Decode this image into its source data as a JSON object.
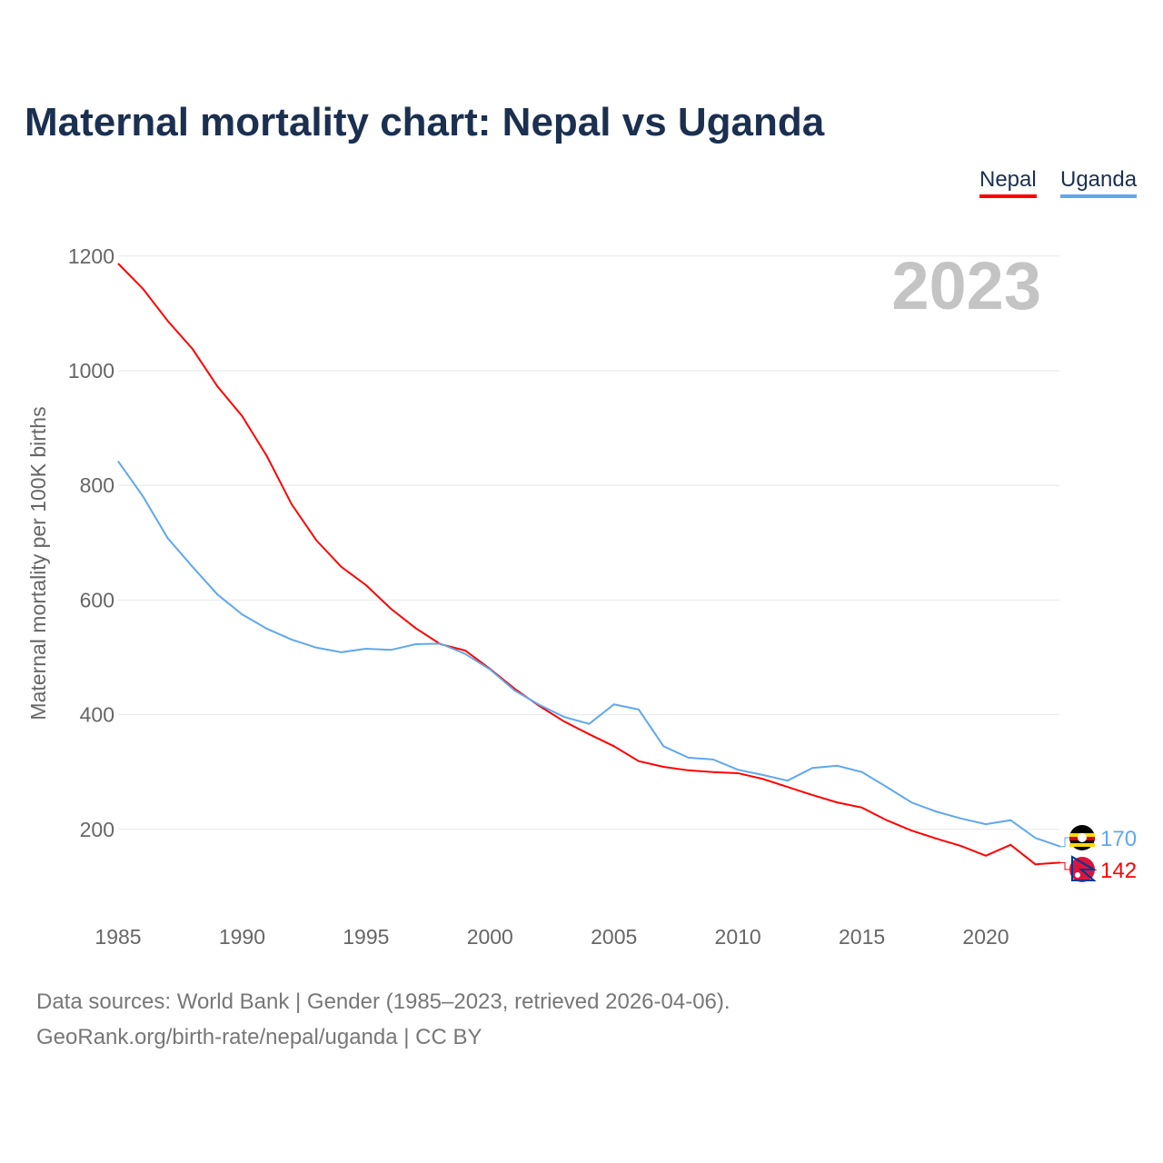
{
  "chart_data": {
    "type": "line",
    "title": "Maternal mortality chart: Nepal vs Uganda",
    "ylabel": "Maternal mortality per 100K births",
    "xlabel": "",
    "year_label": "2023",
    "ylim": [
      0,
      1200
    ],
    "xlim": [
      1985,
      2023
    ],
    "yticks": [
      200,
      400,
      600,
      800,
      1000,
      1200
    ],
    "xticks": [
      1985,
      1990,
      1995,
      2000,
      2005,
      2010,
      2015,
      2020
    ],
    "grid": true,
    "legend_position": "top-right",
    "x": [
      1985,
      1986,
      1987,
      1988,
      1989,
      1990,
      1991,
      1992,
      1993,
      1994,
      1995,
      1996,
      1997,
      1998,
      1999,
      2000,
      2001,
      2002,
      2003,
      2004,
      2005,
      2006,
      2007,
      2008,
      2009,
      2010,
      2011,
      2012,
      2013,
      2014,
      2015,
      2016,
      2017,
      2018,
      2019,
      2020,
      2021,
      2022,
      2023
    ],
    "series": [
      {
        "name": "Nepal",
        "color": "#ff0000",
        "end_label": "142",
        "values": [
          1187,
          1143,
          1087,
          1038,
          973,
          921,
          851,
          767,
          704,
          658,
          626,
          585,
          551,
          523,
          512,
          480,
          445,
          415,
          388,
          366,
          345,
          319,
          309,
          303,
          300,
          298,
          288,
          274,
          260,
          247,
          238,
          216,
          198,
          184,
          171,
          154,
          173,
          139,
          142
        ]
      },
      {
        "name": "Uganda",
        "color": "#5fa8ee",
        "end_label": "170",
        "values": [
          842,
          781,
          708,
          658,
          610,
          575,
          550,
          531,
          517,
          509,
          515,
          513,
          523,
          524,
          506,
          479,
          442,
          417,
          396,
          384,
          418,
          409,
          345,
          325,
          322,
          304,
          295,
          285,
          307,
          311,
          300,
          274,
          247,
          231,
          219,
          209,
          216,
          185,
          170
        ]
      }
    ]
  },
  "footer": {
    "line1": "Data sources: World Bank | Gender (1985–2023, retrieved 2026-04-06).",
    "line2": "GeoRank.org/birth-rate/nepal/uganda | CC BY"
  }
}
